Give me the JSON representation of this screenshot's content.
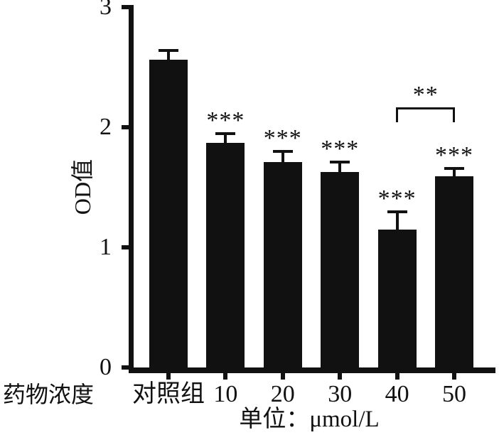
{
  "chart_data": {
    "type": "bar",
    "title": "",
    "ylabel": "OD值",
    "xlabel_left": "药物浓度",
    "xlabel_unit": "单位：μmol/L",
    "categories": [
      "对照组",
      "10",
      "20",
      "30",
      "40",
      "50"
    ],
    "values": [
      2.56,
      1.87,
      1.71,
      1.63,
      1.15,
      1.59
    ],
    "errors": [
      0.09,
      0.09,
      0.1,
      0.09,
      0.16,
      0.08
    ],
    "significance": [
      "",
      "***",
      "***",
      "***",
      "***",
      "***"
    ],
    "comparison_bracket": {
      "from": "40",
      "to": "50",
      "label": "**"
    },
    "y_ticks": [
      0,
      1,
      2,
      3
    ],
    "ylim": [
      0,
      3
    ],
    "bar_color": "#111111",
    "background_color": "#ffffff",
    "grid": false,
    "legend": null
  }
}
